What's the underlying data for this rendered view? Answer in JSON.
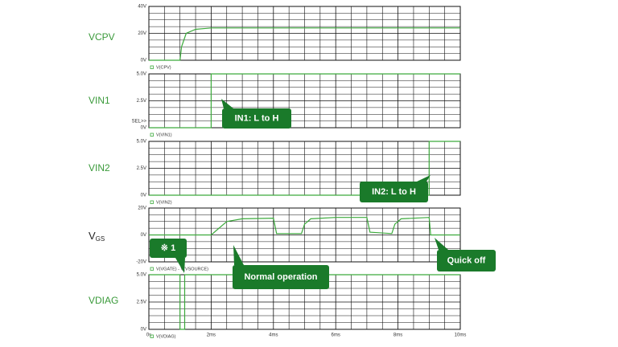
{
  "chart_data": [
    {
      "type": "line",
      "label": "VCPV",
      "x": [
        0,
        1,
        1.05,
        1.2,
        1.5,
        2,
        3,
        10
      ],
      "series": [
        {
          "name": "V(CPV)",
          "color": "#3caa3c",
          "values": [
            0,
            0,
            10,
            20,
            23,
            24,
            24,
            24
          ]
        }
      ],
      "xlim": [
        0,
        10
      ],
      "ylim": [
        0,
        40
      ],
      "yticks": [
        {
          "value": 0,
          "label": "0V"
        },
        {
          "value": 20,
          "label": "20V"
        },
        {
          "value": 40,
          "label": "40V"
        }
      ],
      "grid": true
    },
    {
      "type": "line",
      "label": "VIN1",
      "cursor_label": "SEL>>",
      "x": [
        0,
        2,
        2,
        10
      ],
      "series": [
        {
          "name": "V(VIN1)",
          "color": "#3caa3c",
          "values": [
            0,
            0,
            5,
            5
          ]
        }
      ],
      "xlim": [
        0,
        10
      ],
      "ylim": [
        0,
        5
      ],
      "yticks": [
        {
          "value": 0,
          "label": "0V"
        },
        {
          "value": 2.5,
          "label": "2.5V"
        },
        {
          "value": 5,
          "label": "5.0V"
        }
      ],
      "grid": true
    },
    {
      "type": "line",
      "label": "VIN2",
      "x": [
        0,
        9,
        9,
        10
      ],
      "series": [
        {
          "name": "V(VIN2)",
          "color": "#3caa3c",
          "values": [
            0,
            0,
            5,
            5
          ]
        }
      ],
      "xlim": [
        0,
        10
      ],
      "ylim": [
        0,
        5
      ],
      "yticks": [
        {
          "value": 0,
          "label": "0V"
        },
        {
          "value": 2.5,
          "label": "2.5V"
        },
        {
          "value": 5,
          "label": "5.0V"
        }
      ],
      "grid": true
    },
    {
      "type": "line",
      "label_main": "V",
      "label_sub": "GS",
      "x": [
        0,
        2,
        2.5,
        3,
        4,
        4.1,
        4.9,
        5,
        5.2,
        6,
        7,
        7.1,
        7.8,
        7.9,
        8.1,
        9,
        9.05,
        10
      ],
      "series": [
        {
          "name": "V(VGATE) - V(VSOURCE)",
          "color": "#3caa3c",
          "values": [
            0,
            0,
            10,
            12,
            12.5,
            1,
            1,
            8,
            12,
            13,
            13,
            2,
            1,
            8,
            12,
            13,
            0,
            0
          ]
        }
      ],
      "xlim": [
        0,
        10
      ],
      "ylim": [
        -20,
        20
      ],
      "yticks": [
        {
          "value": -20,
          "label": "-20V"
        },
        {
          "value": 0,
          "label": "0V"
        },
        {
          "value": 20,
          "label": "20V"
        }
      ],
      "grid": true
    },
    {
      "type": "line",
      "label": "VDIAG",
      "x": [
        0,
        1,
        1,
        1.15,
        1.15,
        10
      ],
      "series": [
        {
          "name": "V(VDIAG)",
          "color": "#3caa3c",
          "values": [
            5,
            5,
            0,
            0,
            5,
            5
          ]
        }
      ],
      "xlim": [
        0,
        10
      ],
      "ylim": [
        0,
        5
      ],
      "yticks": [
        {
          "value": 0,
          "label": "0V"
        },
        {
          "value": 2.5,
          "label": "2.5V"
        },
        {
          "value": 5,
          "label": "5.0V"
        }
      ],
      "xticks": [
        {
          "value": 0,
          "label": "0s"
        },
        {
          "value": 2,
          "label": "2ms"
        },
        {
          "value": 4,
          "label": "4ms"
        },
        {
          "value": 6,
          "label": "6ms"
        },
        {
          "value": 8,
          "label": "8ms"
        },
        {
          "value": 10,
          "label": "10ms"
        }
      ],
      "grid": true
    }
  ],
  "annotations": [
    "IN1: L to H",
    "IN2: L to H",
    "※ 1",
    "Normal operation",
    "Quick off"
  ]
}
